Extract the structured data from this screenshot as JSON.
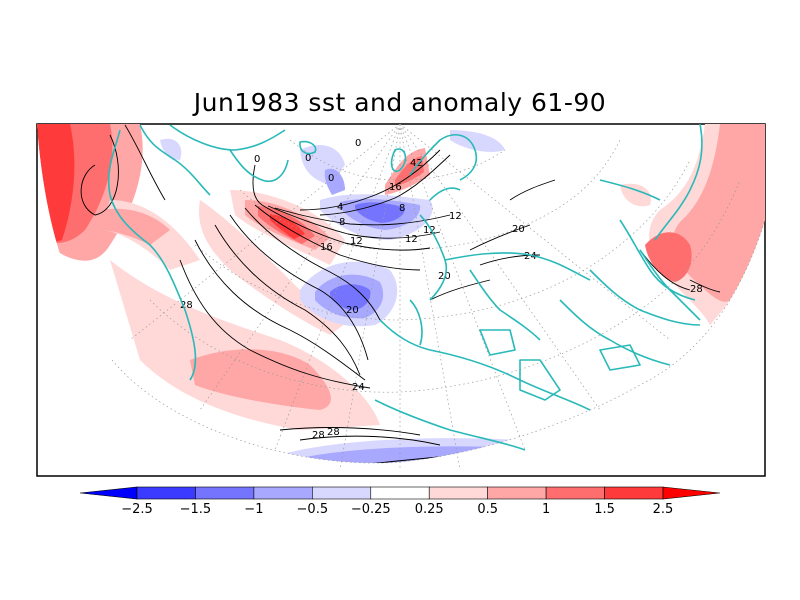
{
  "title": "Jun1983 sst and anomaly 61-90",
  "colors": {
    "background": "#ffffff",
    "frame": "#000000",
    "coastline": "#2ab9b9",
    "contour": "#000000",
    "graticule": "#9a9a9a",
    "land": "#ffffff"
  },
  "map": {
    "projection": "polar stereographic (northern hemisphere)",
    "field": "sea surface temperature and anomaly",
    "contour_labels": [
      "0",
      "0",
      "0",
      "0",
      "4",
      "8",
      "8",
      "12",
      "12",
      "12",
      "12",
      "16",
      "16",
      "20",
      "20",
      "20",
      "24",
      "24",
      "28",
      "28",
      "28",
      "28",
      "42"
    ]
  },
  "colorbar": {
    "levels": [
      "-2.5",
      "-1.5",
      "-1",
      "-0.5",
      "-0.25",
      "0.25",
      "0.5",
      "1",
      "1.5",
      "2.5"
    ],
    "bins": [
      {
        "color": "#0000ff"
      },
      {
        "color": "#3b3bff"
      },
      {
        "color": "#7474ff"
      },
      {
        "color": "#a8a8ff"
      },
      {
        "color": "#d8d8ff"
      },
      {
        "color": "#ffffff"
      },
      {
        "color": "#ffd8d8"
      },
      {
        "color": "#ffa6a6"
      },
      {
        "color": "#ff6e6e"
      },
      {
        "color": "#ff3a3a"
      },
      {
        "color": "#ff0000"
      }
    ]
  }
}
